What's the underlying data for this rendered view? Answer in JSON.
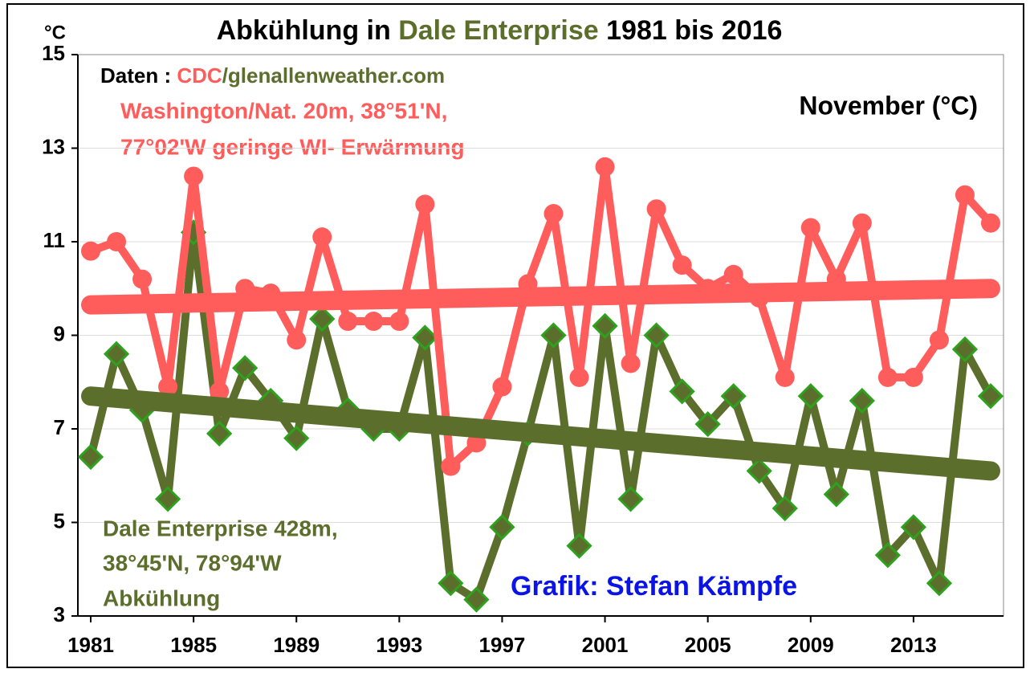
{
  "chart_data": {
    "type": "line",
    "title": "Abkühlung in",
    "title_highlight": "Dale Enterprise",
    "title_end": "1981 bis 2016",
    "y_unit": "°C",
    "subtitle": "November (°C)",
    "source": [
      "Daten : ",
      "CDC",
      "/glenallenweather.com"
    ],
    "annotations_red": [
      "Washington/Nat. 20m, 38°51'N,",
      "77°02'W geringe WI- Erwärmung"
    ],
    "annotations_green": [
      "Dale Enterprise 428m,",
      "38°45'N, 78°94'W",
      "Abkühlung"
    ],
    "credit": "Grafik: Stefan Kämpfe",
    "x": [
      1981,
      1982,
      1983,
      1984,
      1985,
      1986,
      1987,
      1988,
      1989,
      1990,
      1991,
      1992,
      1993,
      1994,
      1995,
      1996,
      1997,
      1998,
      1999,
      2000,
      2001,
      2002,
      2003,
      2004,
      2005,
      2006,
      2007,
      2008,
      2009,
      2010,
      2011,
      2012,
      2013,
      2014,
      2015,
      2016
    ],
    "series": [
      {
        "color": "#5b6e2c",
        "marker": "diamond",
        "values": [
          6.4,
          8.6,
          7.4,
          5.5,
          11.2,
          6.9,
          8.3,
          7.6,
          6.8,
          9.35,
          7.4,
          7.0,
          7.0,
          8.95,
          3.7,
          3.35,
          4.9,
          6.9,
          9.0,
          4.5,
          9.2,
          5.5,
          9.0,
          7.8,
          7.1,
          7.7,
          6.1,
          5.3,
          7.7,
          5.6,
          7.6,
          4.3,
          4.9,
          3.7,
          8.7,
          7.7
        ],
        "trend": [
          7.7,
          6.1
        ]
      },
      {
        "color": "#ff5c5c",
        "marker": "circle",
        "values": [
          10.8,
          11.0,
          10.2,
          7.9,
          12.4,
          7.8,
          10.0,
          9.9,
          8.9,
          11.1,
          9.3,
          9.3,
          9.3,
          11.8,
          6.2,
          6.7,
          7.9,
          10.1,
          11.6,
          8.1,
          12.6,
          8.4,
          11.7,
          10.5,
          10.0,
          10.3,
          9.8,
          8.1,
          11.3,
          10.2,
          11.4,
          8.1,
          8.1,
          8.9,
          12.0,
          11.4
        ],
        "trend": [
          9.65,
          10.0
        ]
      }
    ],
    "xlim": [
      1980.5,
      2016.5
    ],
    "xticks": [
      1981,
      1985,
      1989,
      1993,
      1997,
      2001,
      2005,
      2009,
      2013
    ],
    "ylim": [
      3,
      15
    ],
    "yticks": [
      3,
      5,
      7,
      9,
      11,
      13,
      15
    ],
    "grid": true
  }
}
